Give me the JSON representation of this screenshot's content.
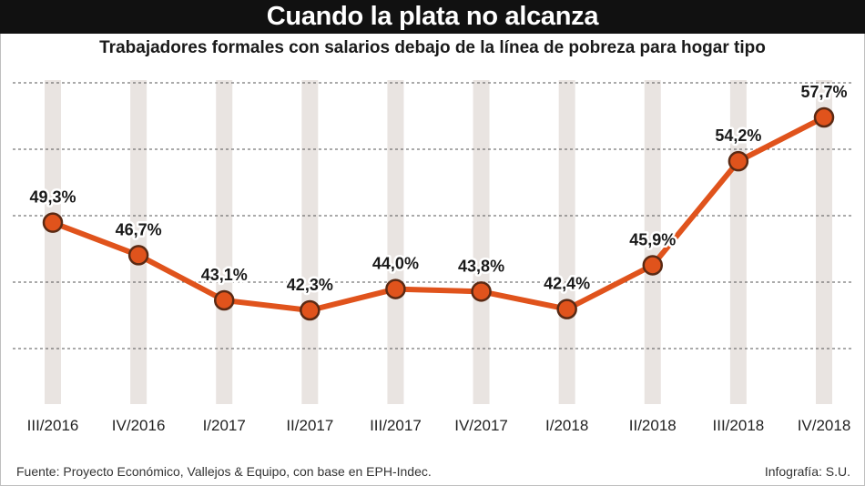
{
  "title": "Cuando la plata no alcanza",
  "subtitle": "Trabajadores formales con salarios debajo de la línea de pobreza para hogar tipo",
  "footer": {
    "source": "Fuente: Proyecto Económico, Vallejos & Equipo, con base en EPH-Indec.",
    "credit": "Infografía: S.U."
  },
  "colors": {
    "line": "#e0531c",
    "marker_fill": "#e0531c",
    "marker_stroke": "#5a2a14",
    "column_band": "#e9e4e1",
    "grid": "#555555",
    "title_bar": "#111111"
  },
  "chart_data": {
    "type": "line",
    "categories": [
      "III/2016",
      "IV/2016",
      "I/2017",
      "II/2017",
      "III/2017",
      "IV/2017",
      "I/2018",
      "II/2018",
      "III/2018",
      "IV/2018"
    ],
    "values": [
      49.3,
      46.7,
      43.1,
      42.3,
      44.0,
      43.8,
      42.4,
      45.9,
      54.2,
      57.7
    ],
    "data_labels": [
      "49,3%",
      "46,7%",
      "43,1%",
      "42,3%",
      "44,0%",
      "43,8%",
      "42,4%",
      "45,9%",
      "54,2%",
      "57,7%"
    ],
    "grid": "horizontal dashed",
    "legend": "none"
  }
}
